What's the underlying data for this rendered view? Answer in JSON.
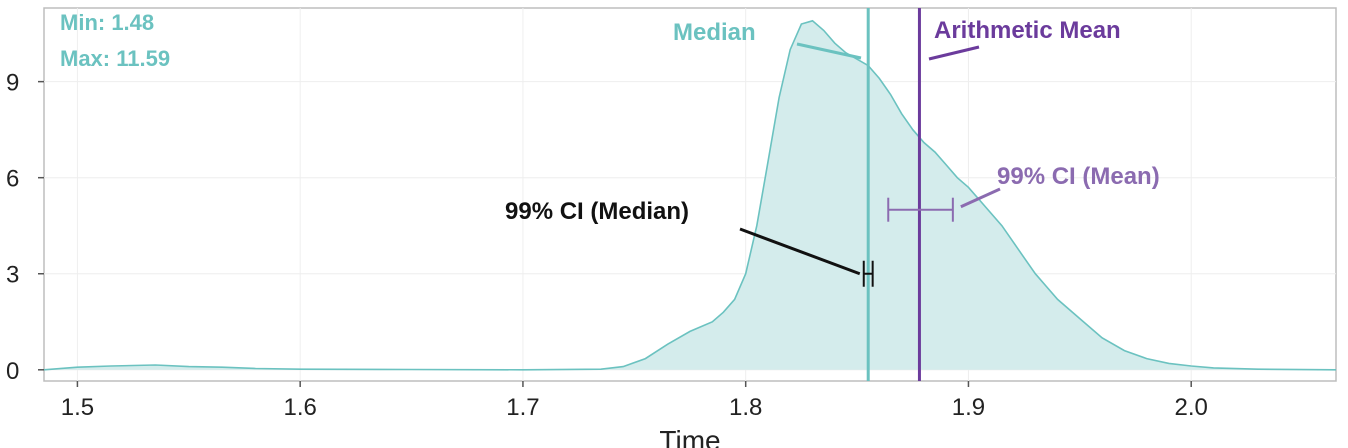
{
  "chart_data": {
    "type": "area",
    "title": "",
    "xlabel": "Time",
    "ylabel": "",
    "xlim": [
      1.485,
      2.065
    ],
    "ylim": [
      -0.35,
      11.3
    ],
    "x_ticks": [
      {
        "value": 1.5,
        "label": "1.5"
      },
      {
        "value": 1.6,
        "label": "1.6"
      },
      {
        "value": 1.7,
        "label": "1.7"
      },
      {
        "value": 1.8,
        "label": "1.8"
      },
      {
        "value": 1.9,
        "label": "1.9"
      },
      {
        "value": 2.0,
        "label": "2.0"
      }
    ],
    "y_ticks": [
      {
        "value": 0,
        "label": "0"
      },
      {
        "value": 3,
        "label": "3"
      },
      {
        "value": 6,
        "label": "6"
      },
      {
        "value": 9,
        "label": "9"
      }
    ],
    "grid": true,
    "series": [
      {
        "color": "#6bc2c0",
        "fill": "#d4ecec",
        "x": [
          1.485,
          1.5,
          1.515,
          1.535,
          1.55,
          1.565,
          1.58,
          1.6,
          1.65,
          1.7,
          1.735,
          1.745,
          1.755,
          1.765,
          1.775,
          1.785,
          1.79,
          1.795,
          1.8,
          1.805,
          1.81,
          1.815,
          1.82,
          1.825,
          1.83,
          1.835,
          1.84,
          1.845,
          1.85,
          1.855,
          1.86,
          1.865,
          1.87,
          1.875,
          1.88,
          1.885,
          1.89,
          1.895,
          1.9,
          1.905,
          1.91,
          1.915,
          1.92,
          1.925,
          1.93,
          1.935,
          1.94,
          1.95,
          1.96,
          1.97,
          1.98,
          1.99,
          2.0,
          2.01,
          2.03,
          2.065
        ],
        "values": [
          0.0,
          0.08,
          0.12,
          0.15,
          0.1,
          0.08,
          0.04,
          0.02,
          0.01,
          0.0,
          0.02,
          0.1,
          0.35,
          0.8,
          1.2,
          1.5,
          1.8,
          2.2,
          3.0,
          4.5,
          6.5,
          8.5,
          10.0,
          10.8,
          10.9,
          10.6,
          10.2,
          9.9,
          9.7,
          9.5,
          9.1,
          8.6,
          8.0,
          7.5,
          7.1,
          6.8,
          6.4,
          6.0,
          5.7,
          5.3,
          4.9,
          4.5,
          4.0,
          3.5,
          3.0,
          2.6,
          2.2,
          1.6,
          1.0,
          0.6,
          0.35,
          0.2,
          0.12,
          0.06,
          0.02,
          0.0
        ]
      }
    ],
    "median": {
      "label": "Median",
      "value": 1.855,
      "color": "#6bc2c0"
    },
    "mean": {
      "label": "Arithmetic Mean",
      "value": 1.878,
      "color": "#6b3b9c"
    },
    "ci_median": {
      "label": "99% CI (Median)",
      "low": 1.853,
      "high": 1.857,
      "y": 3.0,
      "color": "#111111"
    },
    "ci_mean": {
      "label": "99% CI  (Mean)",
      "low": 1.864,
      "high": 1.893,
      "y": 5.0,
      "color": "#8b6bb0"
    },
    "stats": {
      "min": "Min: 1.48",
      "max": "Max: 11.59",
      "color": "#6bc2c0"
    }
  }
}
